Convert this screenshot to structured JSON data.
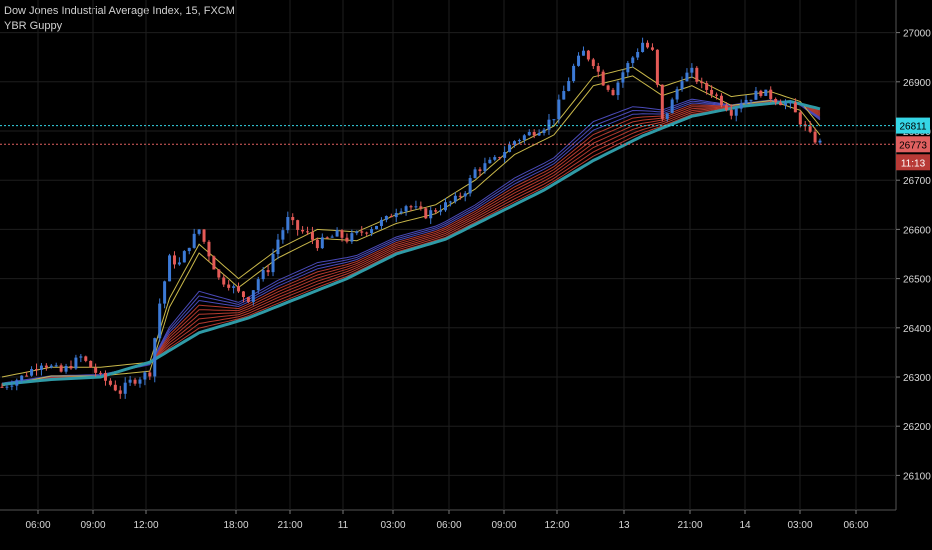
{
  "legend": {
    "symbol_line": "Dow Jones Industrial Average Index, 15, FXCM",
    "indicator_line": "YBR Guppy"
  },
  "colors": {
    "background": "#000000",
    "grid": "#1e1e1e",
    "up_candle": "#3c7ad6",
    "down_candle": "#e45a57",
    "fast_ema": "#c9b84a",
    "slow_ema_band": "#b53a2f",
    "trend_ema": "#2f9aa6",
    "cyan_level": "#35d6e6",
    "red_level": "#e06060"
  },
  "chart_data": {
    "type": "candlestick",
    "title": "Dow Jones Industrial Average Index, 15, FXCM",
    "indicator": "YBR Guppy",
    "ylim": [
      26050,
      27050
    ],
    "y_ticks": [
      27000,
      26900,
      26800,
      26700,
      26600,
      26500,
      26400,
      26300,
      26200,
      26100
    ],
    "x_tick_labels": [
      "06:00",
      "09:00",
      "12:00",
      "18:00",
      "21:00",
      "11",
      "03:00",
      "06:00",
      "09:00",
      "12:00",
      "13",
      "21:00",
      "14",
      "03:00",
      "06:00"
    ],
    "price_levels": [
      {
        "value": 26811,
        "label": "26811",
        "color": "cyan"
      },
      {
        "value": 26773,
        "label": "26773",
        "color": "red"
      }
    ],
    "bar_countdown": "11:13",
    "close_path": [
      [
        0,
        26280
      ],
      [
        4,
        26300
      ],
      [
        8,
        26330
      ],
      [
        12,
        26310
      ],
      [
        16,
        26340
      ],
      [
        20,
        26300
      ],
      [
        24,
        26270
      ],
      [
        26,
        26290
      ],
      [
        28,
        26300
      ],
      [
        30,
        26310
      ],
      [
        32,
        26450
      ],
      [
        34,
        26540
      ],
      [
        36,
        26530
      ],
      [
        38,
        26570
      ],
      [
        40,
        26600
      ],
      [
        42,
        26550
      ],
      [
        44,
        26500
      ],
      [
        46,
        26490
      ],
      [
        48,
        26470
      ],
      [
        50,
        26460
      ],
      [
        52,
        26500
      ],
      [
        54,
        26520
      ],
      [
        56,
        26580
      ],
      [
        58,
        26620
      ],
      [
        60,
        26600
      ],
      [
        62,
        26590
      ],
      [
        64,
        26570
      ],
      [
        66,
        26580
      ],
      [
        68,
        26590
      ],
      [
        70,
        26580
      ],
      [
        72,
        26590
      ],
      [
        74,
        26600
      ],
      [
        76,
        26610
      ],
      [
        78,
        26620
      ],
      [
        80,
        26640
      ],
      [
        82,
        26650
      ],
      [
        84,
        26640
      ],
      [
        86,
        26630
      ],
      [
        88,
        26640
      ],
      [
        90,
        26650
      ],
      [
        92,
        26660
      ],
      [
        94,
        26680
      ],
      [
        96,
        26720
      ],
      [
        98,
        26730
      ],
      [
        100,
        26740
      ],
      [
        102,
        26760
      ],
      [
        104,
        26780
      ],
      [
        106,
        26790
      ],
      [
        108,
        26800
      ],
      [
        110,
        26810
      ],
      [
        112,
        26830
      ],
      [
        114,
        26880
      ],
      [
        116,
        26930
      ],
      [
        118,
        26960
      ],
      [
        120,
        26940
      ],
      [
        122,
        26900
      ],
      [
        124,
        26880
      ],
      [
        126,
        26920
      ],
      [
        128,
        26950
      ],
      [
        130,
        26980
      ],
      [
        132,
        26960
      ],
      [
        134,
        26820
      ],
      [
        136,
        26860
      ],
      [
        138,
        26910
      ],
      [
        140,
        26920
      ],
      [
        142,
        26890
      ],
      [
        144,
        26880
      ],
      [
        146,
        26860
      ],
      [
        148,
        26840
      ],
      [
        150,
        26860
      ],
      [
        152,
        26870
      ],
      [
        154,
        26880
      ],
      [
        156,
        26870
      ],
      [
        158,
        26860
      ],
      [
        160,
        26850
      ],
      [
        162,
        26820
      ],
      [
        164,
        26790
      ],
      [
        166,
        26775
      ]
    ],
    "ema_fast_path": [
      [
        0,
        26290
      ],
      [
        10,
        26310
      ],
      [
        20,
        26310
      ],
      [
        30,
        26320
      ],
      [
        34,
        26450
      ],
      [
        40,
        26560
      ],
      [
        48,
        26490
      ],
      [
        56,
        26550
      ],
      [
        64,
        26590
      ],
      [
        72,
        26585
      ],
      [
        80,
        26620
      ],
      [
        88,
        26640
      ],
      [
        96,
        26690
      ],
      [
        104,
        26760
      ],
      [
        112,
        26800
      ],
      [
        120,
        26900
      ],
      [
        128,
        26920
      ],
      [
        134,
        26880
      ],
      [
        140,
        26900
      ],
      [
        148,
        26860
      ],
      [
        156,
        26870
      ],
      [
        162,
        26850
      ],
      [
        166,
        26800
      ]
    ],
    "ema_trend_path": [
      [
        0,
        26285
      ],
      [
        10,
        26295
      ],
      [
        20,
        26300
      ],
      [
        30,
        26330
      ],
      [
        40,
        26390
      ],
      [
        50,
        26420
      ],
      [
        60,
        26460
      ],
      [
        70,
        26500
      ],
      [
        80,
        26550
      ],
      [
        90,
        26580
      ],
      [
        100,
        26630
      ],
      [
        110,
        26680
      ],
      [
        120,
        26740
      ],
      [
        130,
        26790
      ],
      [
        140,
        26830
      ],
      [
        150,
        26850
      ],
      [
        160,
        26860
      ],
      [
        166,
        26845
      ]
    ]
  }
}
